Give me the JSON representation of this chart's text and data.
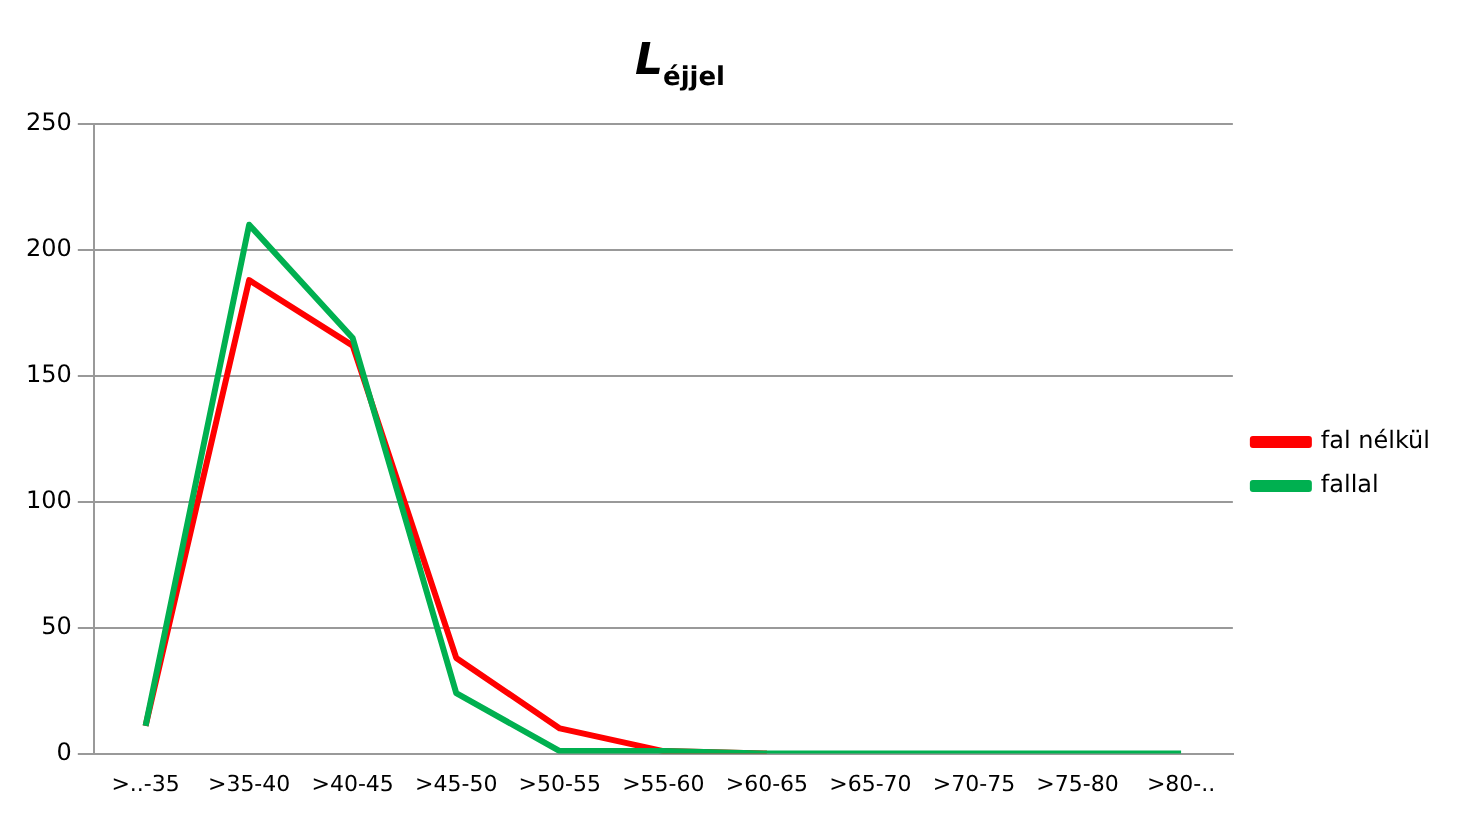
{
  "chart_data": {
    "type": "line",
    "title": "L$_{éjjel}$",
    "categories": [
      ">..-35",
      ">35-40",
      ">40-45",
      ">45-50",
      ">50-55",
      ">55-60",
      ">60-65",
      ">65-70",
      ">70-75",
      ">75-80",
      ">80-.."
    ],
    "series": [
      {
        "name": "fal nélkül",
        "color": "#ff0000",
        "values": [
          11,
          188,
          162,
          38,
          10,
          1,
          0,
          null,
          null,
          null,
          null
        ]
      },
      {
        "name": "fallal",
        "color": "#00b050",
        "values": [
          11,
          210,
          165,
          24,
          1,
          1,
          0,
          0,
          0,
          0,
          0
        ]
      }
    ],
    "ylim": [
      0,
      250
    ],
    "yticks": [
      0,
      50,
      100,
      150,
      200,
      250
    ],
    "grid": "y",
    "legend": "right",
    "marker": "none",
    "line_style": "solid"
  }
}
